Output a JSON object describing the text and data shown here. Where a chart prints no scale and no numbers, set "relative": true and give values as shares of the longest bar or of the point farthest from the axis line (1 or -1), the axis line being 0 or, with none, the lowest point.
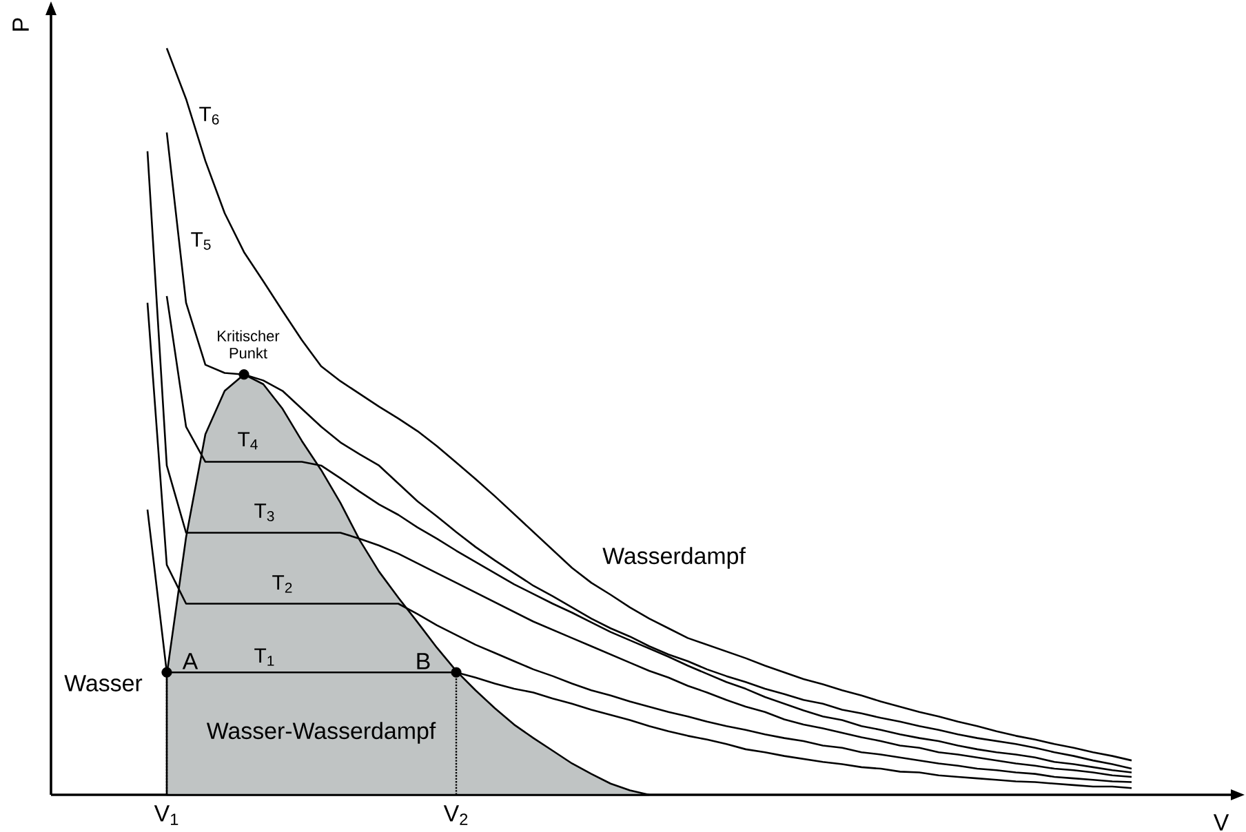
{
  "chart_data": {
    "type": "line",
    "relative": true,
    "xlabel": "V",
    "ylabel": "P",
    "categories": [
      null,
      null,
      null,
      null,
      null,
      null,
      "V$_{1}$",
      null,
      null,
      null,
      null,
      null,
      null,
      null,
      null,
      null,
      null,
      null,
      null,
      null,
      null,
      "V$_{2}$",
      null,
      null,
      null,
      null,
      null,
      null,
      null,
      null,
      null,
      null,
      null,
      null,
      null,
      null,
      null,
      null,
      null,
      null,
      null,
      null,
      null,
      null,
      null,
      null,
      null,
      null,
      null,
      null,
      null,
      null,
      null,
      null,
      null,
      null,
      null
    ],
    "annotations": [
      "Kritischer Punkt",
      "A",
      "B",
      "Wasser",
      "Wasser-Wasserdampf",
      "Wasserdampf"
    ],
    "series": [
      {
        "type": "area",
        "color": "#c0c4c4",
        "values": [
          null,
          null,
          null,
          null,
          null,
          null,
          0.161,
          0.345,
          0.483,
          0.541,
          0.563,
          0.55,
          0.517,
          0.474,
          0.435,
          0.391,
          0.341,
          0.299,
          0.264,
          0.231,
          0.197,
          0.166,
          0.14,
          0.116,
          0.094,
          0.076,
          0.059,
          0.042,
          0.028,
          0.015,
          0.006,
          0,
          null,
          null,
          null,
          null,
          null,
          null,
          null,
          null,
          null,
          null,
          null,
          null,
          null,
          null,
          null,
          null,
          null,
          null,
          null,
          null,
          null,
          null,
          null,
          null,
          null
        ]
      },
      {
        "name": "T$_{1}$",
        "color": "#000000",
        "values": [
          null,
          null,
          null,
          null,
          null,
          0.382,
          0.164,
          0.164,
          0.164,
          0.164,
          0.164,
          0.164,
          0.164,
          0.164,
          0.164,
          0.164,
          0.164,
          0.164,
          0.164,
          0.164,
          0.164,
          0.164,
          0.157,
          0.149,
          0.142,
          0.137,
          0.129,
          0.122,
          0.114,
          0.107,
          0.1,
          0.092,
          0.085,
          0.079,
          0.074,
          0.068,
          0.061,
          0.057,
          0.052,
          0.048,
          0.044,
          0.041,
          0.037,
          0.035,
          0.031,
          0.03,
          0.026,
          0.024,
          0.022,
          0.02,
          0.018,
          0.017,
          0.015,
          0.013,
          0.011,
          0.011,
          0.009
        ]
      },
      {
        "name": "T$_{2}$",
        "color": "#000000",
        "values": [
          null,
          null,
          null,
          null,
          null,
          0.659,
          0.308,
          0.256,
          0.256,
          0.256,
          0.256,
          0.256,
          0.256,
          0.256,
          0.256,
          0.256,
          0.256,
          0.256,
          0.256,
          0.242,
          0.227,
          0.214,
          0.201,
          0.19,
          0.179,
          0.168,
          0.159,
          0.149,
          0.14,
          0.133,
          0.125,
          0.118,
          0.111,
          0.105,
          0.098,
          0.092,
          0.087,
          0.081,
          0.076,
          0.072,
          0.066,
          0.063,
          0.057,
          0.054,
          0.05,
          0.046,
          0.042,
          0.039,
          0.035,
          0.033,
          0.03,
          0.028,
          0.024,
          0.022,
          0.02,
          0.018,
          0.017
        ]
      },
      {
        "name": "T$_{3}$",
        "color": "#000000",
        "values": [
          null,
          null,
          null,
          null,
          null,
          0.862,
          0.441,
          0.351,
          0.351,
          0.351,
          0.351,
          0.351,
          0.351,
          0.351,
          0.351,
          0.351,
          0.343,
          0.334,
          0.323,
          0.31,
          0.297,
          0.284,
          0.271,
          0.258,
          0.245,
          0.232,
          0.221,
          0.21,
          0.199,
          0.188,
          0.177,
          0.166,
          0.157,
          0.146,
          0.137,
          0.127,
          0.118,
          0.111,
          0.101,
          0.094,
          0.089,
          0.083,
          0.077,
          0.072,
          0.066,
          0.063,
          0.057,
          0.054,
          0.05,
          0.046,
          0.042,
          0.039,
          0.035,
          0.033,
          0.03,
          0.026,
          0.024
        ]
      },
      {
        "name": "T$_{4}$",
        "color": "#000000",
        "values": [
          null,
          null,
          null,
          null,
          null,
          null,
          0.668,
          0.493,
          0.446,
          0.446,
          0.446,
          0.446,
          0.446,
          0.446,
          0.441,
          0.424,
          0.406,
          0.389,
          0.375,
          0.358,
          0.343,
          0.327,
          0.312,
          0.297,
          0.282,
          0.269,
          0.256,
          0.244,
          0.231,
          0.218,
          0.207,
          0.196,
          0.185,
          0.173,
          0.162,
          0.151,
          0.142,
          0.131,
          0.122,
          0.113,
          0.105,
          0.1,
          0.092,
          0.087,
          0.081,
          0.076,
          0.072,
          0.066,
          0.061,
          0.057,
          0.054,
          0.05,
          0.044,
          0.041,
          0.037,
          0.033,
          0.03
        ]
      },
      {
        "name": "T$_{5}$",
        "color": "#000000",
        "values": [
          null,
          null,
          null,
          null,
          null,
          null,
          0.887,
          0.659,
          0.576,
          0.565,
          0.563,
          0.555,
          0.541,
          0.517,
          0.493,
          0.472,
          0.456,
          0.441,
          0.417,
          0.393,
          0.373,
          0.352,
          0.332,
          0.314,
          0.297,
          0.28,
          0.266,
          0.251,
          0.236,
          0.223,
          0.212,
          0.199,
          0.188,
          0.179,
          0.168,
          0.159,
          0.151,
          0.142,
          0.135,
          0.127,
          0.122,
          0.114,
          0.109,
          0.103,
          0.098,
          0.092,
          0.087,
          0.081,
          0.076,
          0.072,
          0.068,
          0.063,
          0.057,
          0.052,
          0.046,
          0.041,
          0.035
        ]
      },
      {
        "name": "T$_{6}$",
        "color": "#000000",
        "values": [
          null,
          null,
          null,
          null,
          null,
          null,
          1,
          0.932,
          0.849,
          0.779,
          0.727,
          0.688,
          0.648,
          0.609,
          0.574,
          0.554,
          0.537,
          0.52,
          0.504,
          0.487,
          0.467,
          0.445,
          0.423,
          0.4,
          0.376,
          0.352,
          0.328,
          0.304,
          0.284,
          0.268,
          0.251,
          0.236,
          0.223,
          0.21,
          0.201,
          0.192,
          0.183,
          0.173,
          0.164,
          0.155,
          0.148,
          0.14,
          0.133,
          0.125,
          0.118,
          0.111,
          0.105,
          0.098,
          0.092,
          0.085,
          0.079,
          0.074,
          0.068,
          0.063,
          0.057,
          0.052,
          0.046
        ]
      },
      {
        "type": "lollipop",
        "color": "#000000",
        "line_style": "dotted",
        "marker": "circle",
        "values": [
          null,
          null,
          null,
          null,
          null,
          null,
          0.164,
          null,
          null,
          null,
          null,
          null,
          null,
          null,
          null,
          null,
          null,
          null,
          null,
          null,
          null,
          0.164,
          null,
          null,
          null,
          null,
          null,
          null,
          null,
          null,
          null,
          null,
          null,
          null,
          null,
          null,
          null,
          null,
          null,
          null,
          null,
          null,
          null,
          null,
          null,
          null,
          null,
          null,
          null,
          null,
          null,
          null,
          null,
          null,
          null,
          null,
          null
        ]
      },
      {
        "type": "scatter",
        "color": "#000000",
        "marker": "circle",
        "values": [
          null,
          null,
          null,
          null,
          null,
          null,
          null,
          null,
          null,
          null,
          0.563,
          null,
          null,
          null,
          null,
          null,
          null,
          null,
          null,
          null,
          null,
          null,
          null,
          null,
          null,
          null,
          null,
          null,
          null,
          null,
          null,
          null,
          null,
          null,
          null,
          null,
          null,
          null,
          null,
          null,
          null,
          null,
          null,
          null,
          null,
          null,
          null,
          null,
          null,
          null,
          null,
          null,
          null,
          null,
          null,
          null,
          null
        ]
      }
    ]
  }
}
